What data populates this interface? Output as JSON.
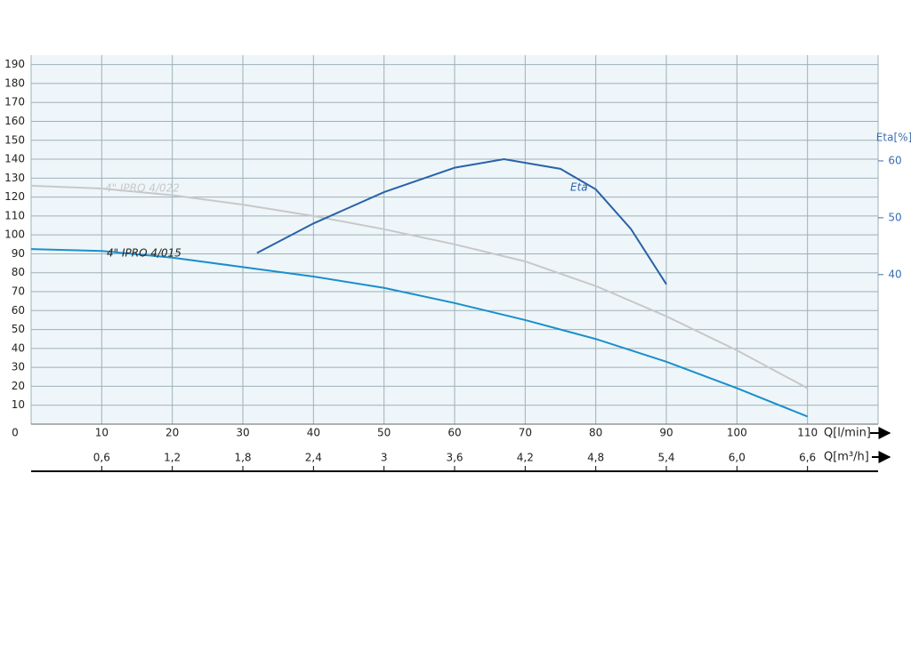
{
  "chart_data": {
    "type": "line",
    "x_label": "Q[l/min]",
    "x2_label": "Q[m³/h]",
    "y2_label": "Eta[%]",
    "xlim": [
      0,
      120
    ],
    "xticks": [
      0,
      10,
      20,
      30,
      40,
      50,
      60,
      70,
      80,
      90,
      100,
      110
    ],
    "x2lim": [
      0,
      7.2
    ],
    "x2ticks": [
      {
        "value": 0.6,
        "label": "0,6"
      },
      {
        "value": 1.2,
        "label": "1,2"
      },
      {
        "value": 1.8,
        "label": "1,8"
      },
      {
        "value": 2.4,
        "label": "2,4"
      },
      3,
      {
        "value": 3.6,
        "label": "3,6"
      },
      {
        "value": 4.2,
        "label": "4,2"
      },
      {
        "value": 4.8,
        "label": "4,8"
      },
      {
        "value": 5.4,
        "label": "5,4"
      },
      {
        "value": 6.0,
        "label": "6,0"
      },
      {
        "value": 6.6,
        "label": "6,6"
      }
    ],
    "ylim": [
      0,
      195
    ],
    "yticks": [
      10,
      20,
      30,
      40,
      50,
      60,
      70,
      80,
      90,
      100,
      110,
      120,
      130,
      140,
      150,
      160,
      170,
      180,
      190
    ],
    "y2lim": [
      13.7,
      78.6
    ],
    "y2ticks": [
      40,
      50,
      60
    ],
    "grid": true,
    "background": "#eef6fa",
    "series": [
      {
        "name": "4\" IPRO 4/022",
        "color": "#c8c8c8",
        "x": [
          0,
          10,
          20,
          30,
          40,
          50,
          60,
          70,
          80,
          90,
          100,
          110
        ],
        "values": [
          126,
          124.5,
          121,
          116,
          110,
          103,
          95,
          86,
          73,
          57,
          39,
          19
        ]
      },
      {
        "name": "4\" IPRO 4/015",
        "color": "#1a8fcb",
        "x": [
          0,
          10,
          20,
          30,
          40,
          50,
          60,
          70,
          80,
          90,
          100,
          110
        ],
        "values": [
          92.5,
          91.5,
          88,
          83,
          78,
          72,
          64,
          55,
          45,
          33,
          19,
          4
        ]
      },
      {
        "name": "Eta",
        "color": "#2a62a8",
        "axis": "y2",
        "x": [
          32,
          40,
          50,
          60,
          67,
          75,
          80,
          85,
          90
        ],
        "values": [
          43.8,
          49,
          54.5,
          58.8,
          60.3,
          58.6,
          55,
          48,
          38.3
        ]
      }
    ]
  }
}
